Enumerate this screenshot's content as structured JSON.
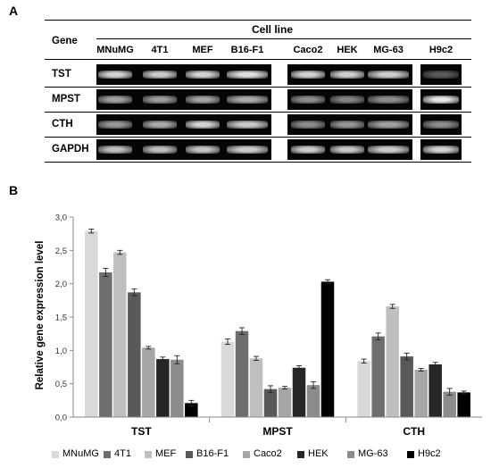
{
  "panel_a": {
    "letter": "A",
    "gene_header": "Gene",
    "cell_line_header": "Cell line",
    "cell_lines": [
      "MNuMG",
      "4T1",
      "MEF",
      "B16-F1",
      "Caco2",
      "HEK",
      "MG-63",
      "H9c2"
    ],
    "genes": [
      {
        "name": "TST",
        "bands": [
          0.85,
          0.82,
          0.85,
          0.9,
          0.85,
          0.84,
          0.82,
          0.25
        ]
      },
      {
        "name": "MPST",
        "bands": [
          0.6,
          0.58,
          0.62,
          0.65,
          0.5,
          0.45,
          0.5,
          0.95
        ]
      },
      {
        "name": "CTH",
        "bands": [
          0.55,
          0.65,
          0.85,
          0.8,
          0.5,
          0.55,
          0.6,
          0.5
        ]
      },
      {
        "name": "GAPDH",
        "bands": [
          0.75,
          0.75,
          0.78,
          0.82,
          0.82,
          0.8,
          0.82,
          0.85
        ]
      }
    ]
  },
  "panel_b": {
    "letter": "B"
  },
  "chart_data": {
    "type": "bar",
    "categories": [
      "TST",
      "MPST",
      "CTH"
    ],
    "ylabel": "Relative gene expression level",
    "ylim": [
      0,
      3
    ],
    "yticks": [
      "0,0",
      "0,5",
      "1,0",
      "1,5",
      "2,0",
      "2,5",
      "3,0"
    ],
    "legend_position": "bottom",
    "series": [
      {
        "name": "MNuMG",
        "color": "#d9d9d9",
        "values": [
          2.79,
          1.13,
          0.84
        ],
        "errors": [
          0.03,
          0.04,
          0.03
        ]
      },
      {
        "name": "4T1",
        "color": "#6e6e6e",
        "values": [
          2.17,
          1.29,
          1.21
        ],
        "errors": [
          0.06,
          0.05,
          0.05
        ]
      },
      {
        "name": "MEF",
        "color": "#bfbfbf",
        "values": [
          2.47,
          0.88,
          1.66
        ],
        "errors": [
          0.03,
          0.03,
          0.03
        ]
      },
      {
        "name": "B16-F1",
        "color": "#595959",
        "values": [
          1.87,
          0.42,
          0.91
        ],
        "errors": [
          0.05,
          0.05,
          0.05
        ]
      },
      {
        "name": "Caco2",
        "color": "#a6a6a6",
        "values": [
          1.04,
          0.44,
          0.71
        ],
        "errors": [
          0.02,
          0.02,
          0.02
        ]
      },
      {
        "name": "HEK",
        "color": "#262626",
        "values": [
          0.87,
          0.74,
          0.79
        ],
        "errors": [
          0.03,
          0.03,
          0.03
        ]
      },
      {
        "name": "MG-63",
        "color": "#8c8c8c",
        "values": [
          0.86,
          0.48,
          0.38
        ],
        "errors": [
          0.06,
          0.05,
          0.05
        ]
      },
      {
        "name": "H9c2",
        "color": "#000000",
        "values": [
          0.21,
          2.03,
          0.37
        ],
        "errors": [
          0.04,
          0.03,
          0.02
        ]
      }
    ]
  }
}
